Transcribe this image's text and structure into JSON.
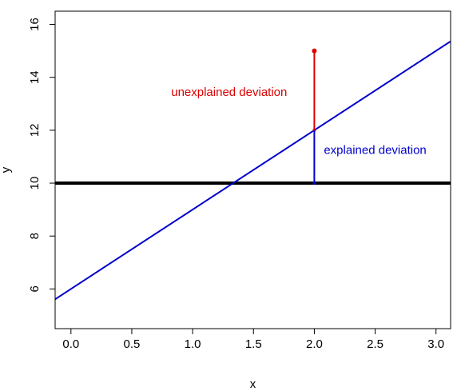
{
  "chart_data": {
    "type": "line",
    "title": "",
    "xlabel": "x",
    "ylabel": "y",
    "xlim": [
      -0.13,
      3.12
    ],
    "ylim": [
      4.5,
      16.5
    ],
    "grid": false,
    "x_ticks": [
      0.0,
      0.5,
      1.0,
      1.5,
      2.0,
      2.5,
      3.0
    ],
    "x_tick_labels": [
      "0.0",
      "0.5",
      "1.0",
      "1.5",
      "2.0",
      "2.5",
      "3.0"
    ],
    "y_ticks": [
      6,
      8,
      10,
      12,
      14,
      16
    ],
    "y_tick_labels": [
      "6",
      "8",
      "10",
      "12",
      "14",
      "16"
    ],
    "mean_line": {
      "y": 10,
      "color": "#000000"
    },
    "regression_line": {
      "intercept": 6,
      "slope": 3,
      "color": "#0000cc"
    },
    "point": {
      "x": 2,
      "y": 15,
      "color": "#dd0000"
    },
    "segments": [
      {
        "x": 2,
        "y_from": 12,
        "y_to": 15,
        "color": "#dd0000",
        "label": "unexplained deviation",
        "label_x": 1.3,
        "label_y": 13.3
      },
      {
        "x": 2,
        "y_from": 10,
        "y_to": 12,
        "color": "#0000cc",
        "label": "explained deviation",
        "label_x": 2.5,
        "label_y": 11.1
      }
    ]
  }
}
